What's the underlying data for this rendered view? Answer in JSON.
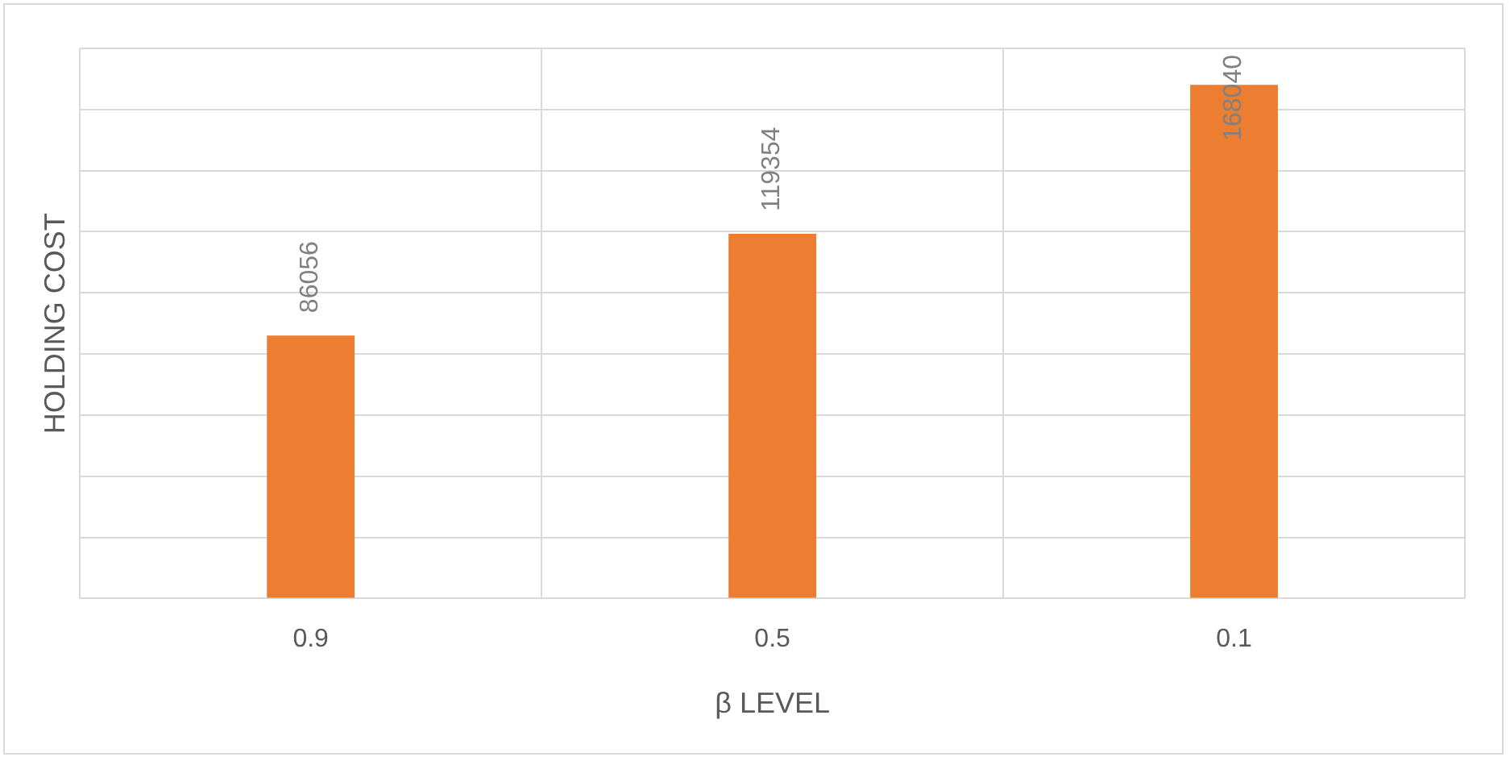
{
  "chart_data": {
    "type": "bar",
    "xlabel": "β LEVEL",
    "ylabel": "HOLDING COST",
    "categories": [
      "0.9",
      "0.5",
      "0.1"
    ],
    "values": [
      86056,
      119354,
      168040
    ],
    "color": "#ed7d31",
    "ylim": [
      0,
      180000
    ],
    "yticks": [
      {
        "value": 0,
        "label": null
      },
      {
        "value": 20000,
        "label": null
      },
      {
        "value": 40000,
        "label": null
      },
      {
        "value": 60000,
        "label": null
      },
      {
        "value": 80000,
        "label": null
      },
      {
        "value": 100000,
        "label": null
      },
      {
        "value": 120000,
        "label": null
      },
      {
        "value": 140000,
        "label": null
      },
      {
        "value": 160000,
        "label": null
      },
      {
        "value": 180000,
        "label": null
      }
    ],
    "data_labels": true,
    "grid": true,
    "tick_labels": "x"
  }
}
